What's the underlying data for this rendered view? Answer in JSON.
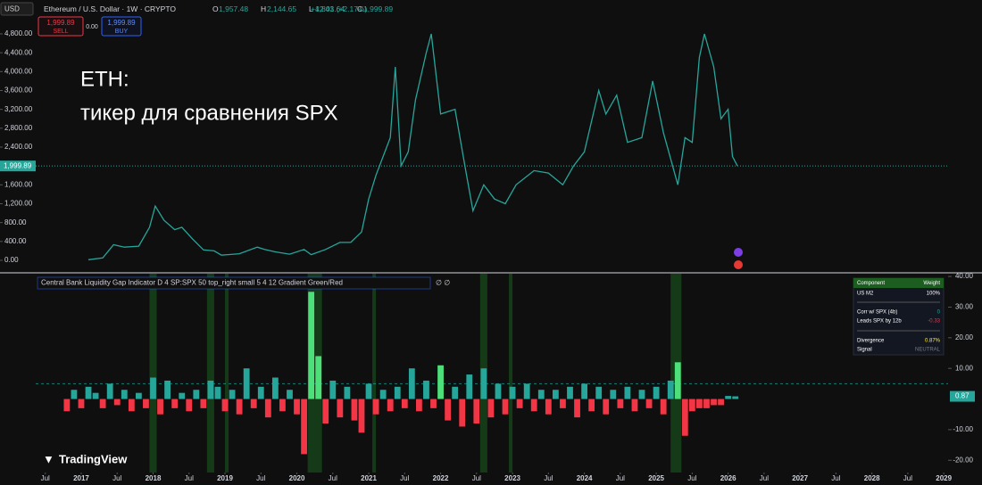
{
  "header": {
    "currency": "USD",
    "symbol": "Ethereum / U.S. Dollar · 1W · CRYPTO",
    "ohlc": [
      {
        "key": "O",
        "value": "1,957.48"
      },
      {
        "key": "H",
        "value": "2,144.65"
      },
      {
        "key": "L",
        "value": "1,803.64"
      },
      {
        "key": "C",
        "value": "1,999.89"
      }
    ],
    "change": "+42.41 (+2.17%)"
  },
  "trade": {
    "sell_price": "1,999.89",
    "sell": "SELL",
    "spread": "0.00",
    "buy_price": "1,999.89",
    "buy": "BUY"
  },
  "chart_data": [
    {
      "type": "line",
      "annotation": [
        "ETH:",
        "тикер для сравнения SPX"
      ],
      "x": [
        2017.1,
        2017.3,
        2017.45,
        2017.6,
        2017.8,
        2017.95,
        2018.03,
        2018.15,
        2018.3,
        2018.4,
        2018.55,
        2018.7,
        2018.85,
        2018.95,
        2019.2,
        2019.45,
        2019.55,
        2019.7,
        2019.9,
        2020.1,
        2020.2,
        2020.4,
        2020.6,
        2020.75,
        2020.9,
        2021.0,
        2021.1,
        2021.3,
        2021.37,
        2021.45,
        2021.55,
        2021.65,
        2021.8,
        2021.87,
        2022.0,
        2022.2,
        2022.35,
        2022.45,
        2022.6,
        2022.75,
        2022.9,
        2023.05,
        2023.3,
        2023.5,
        2023.7,
        2023.85,
        2024.0,
        2024.2,
        2024.3,
        2024.45,
        2024.6,
        2024.8,
        2024.95,
        2025.1,
        2025.3,
        2025.4,
        2025.5,
        2025.6,
        2025.67,
        2025.8,
        2025.9,
        2026.0,
        2026.06,
        2026.13
      ],
      "values": [
        12,
        50,
        330,
        280,
        300,
        700,
        1150,
        850,
        650,
        700,
        450,
        220,
        200,
        110,
        140,
        280,
        230,
        180,
        130,
        230,
        120,
        230,
        380,
        380,
        600,
        1300,
        1800,
        2600,
        4100,
        2000,
        2300,
        3400,
        4400,
        4800,
        3100,
        3200,
        1900,
        1050,
        1600,
        1300,
        1200,
        1600,
        1900,
        1850,
        1600,
        2000,
        2300,
        3600,
        3100,
        3500,
        2500,
        2600,
        3800,
        2700,
        1600,
        2600,
        2500,
        4300,
        4800,
        4100,
        3000,
        3200,
        2200,
        1999.89
      ],
      "color": "#26a69a",
      "xlim": [
        2015.87,
        2029.06
      ],
      "ylim": [
        -246,
        5480
      ],
      "yticks": [
        {
          "value": 0,
          "label": "0.00"
        },
        {
          "value": 400,
          "label": "400.00"
        },
        {
          "value": 800,
          "label": "800.00"
        },
        {
          "value": 1200,
          "label": "1,200.00"
        },
        {
          "value": 1600,
          "label": "1,600.00"
        },
        {
          "value": 2000,
          "label": "2,000.00"
        },
        {
          "value": 2400,
          "label": "2,400.00"
        },
        {
          "value": 2800,
          "label": "2,800.00"
        },
        {
          "value": 3200,
          "label": "3,200.00"
        },
        {
          "value": 3600,
          "label": "3,600.00"
        },
        {
          "value": 4000,
          "label": "4,000.00"
        },
        {
          "value": 4400,
          "label": "4,400.00"
        },
        {
          "value": 4800,
          "label": "4,800.00"
        }
      ],
      "last_price": {
        "value": 1999.89,
        "label": "1,999.89"
      }
    },
    {
      "type": "bar",
      "title": "Central Bank Liquidity Gap Indicator D 4 SP:SPX 50 top_right small 5 4 12 Gradient Green/Red",
      "status": "∅ ∅",
      "x": [
        2016.8,
        2016.9,
        2017.0,
        2017.1,
        2017.2,
        2017.3,
        2017.4,
        2017.5,
        2017.6,
        2017.7,
        2017.8,
        2017.9,
        2018.0,
        2018.1,
        2018.2,
        2018.3,
        2018.4,
        2018.5,
        2018.6,
        2018.7,
        2018.8,
        2018.9,
        2019.0,
        2019.1,
        2019.2,
        2019.3,
        2019.4,
        2019.5,
        2019.6,
        2019.7,
        2019.8,
        2019.9,
        2020.0,
        2020.1,
        2020.2,
        2020.3,
        2020.4,
        2020.5,
        2020.6,
        2020.7,
        2020.8,
        2020.9,
        2021.0,
        2021.1,
        2021.2,
        2021.3,
        2021.4,
        2021.5,
        2021.6,
        2021.7,
        2021.8,
        2021.9,
        2022.0,
        2022.1,
        2022.2,
        2022.3,
        2022.4,
        2022.5,
        2022.6,
        2022.7,
        2022.8,
        2022.9,
        2023.0,
        2023.1,
        2023.2,
        2023.3,
        2023.4,
        2023.5,
        2023.6,
        2023.7,
        2023.8,
        2023.9,
        2024.0,
        2024.1,
        2024.2,
        2024.3,
        2024.4,
        2024.5,
        2024.6,
        2024.7,
        2024.8,
        2024.9,
        2025.0,
        2025.1,
        2025.2,
        2025.3,
        2025.4,
        2025.5,
        2025.6,
        2025.7,
        2025.8,
        2025.9,
        2026.0,
        2026.1
      ],
      "values": [
        -4,
        3,
        -3,
        4,
        2,
        -3,
        5,
        -2,
        3,
        -4,
        2,
        -3,
        7,
        -5,
        6,
        -3,
        2,
        -4,
        3,
        -3,
        6,
        4,
        -4,
        3,
        -5,
        10,
        -3,
        4,
        -6,
        7,
        -4,
        3,
        -5,
        -18,
        35,
        14,
        -8,
        6,
        -6,
        4,
        -7,
        -11,
        5,
        -5,
        3,
        -4,
        4,
        -3,
        10,
        -4,
        6,
        -3,
        11,
        -7,
        4,
        -9,
        8,
        -8,
        10,
        -6,
        5,
        -5,
        4,
        -3,
        5,
        -4,
        3,
        -5,
        3,
        -3,
        4,
        -6,
        5,
        -4,
        4,
        -5,
        3,
        -3,
        4,
        -4,
        3,
        -3,
        4,
        -5,
        6,
        12,
        -12,
        -4,
        -3,
        -3,
        -2,
        -2,
        1,
        0.87
      ],
      "positive_color": "#26a69a",
      "negative_color": "#f23645",
      "zones": [
        [
          2017.95,
          2018.05
        ],
        [
          2018.75,
          2018.85
        ],
        [
          2019.0,
          2019.05
        ],
        [
          2020.15,
          2020.35
        ],
        [
          2021.05,
          2021.1
        ],
        [
          2022.55,
          2022.65
        ],
        [
          2022.95,
          2023.0
        ],
        [
          2025.2,
          2025.35
        ]
      ],
      "zone_color": "#1b5e20",
      "threshold": 5,
      "last_value": {
        "value": 0.87,
        "label": "0.87"
      },
      "xlim": [
        2015.87,
        2029.06
      ],
      "ylim": [
        -24,
        41.2
      ],
      "yticks": [
        {
          "value": -20,
          "label": "-20.00"
        },
        {
          "value": -10,
          "label": "-10.00"
        },
        {
          "value": 10,
          "label": "10.00"
        },
        {
          "value": 20,
          "label": "20.00"
        },
        {
          "value": 30,
          "label": "30.00"
        },
        {
          "value": 40,
          "label": "40.00"
        }
      ],
      "xticks": [
        {
          "value": 2016.5,
          "label": "Jul"
        },
        2017,
        {
          "value": 2017.5,
          "label": "Jul"
        },
        2018,
        {
          "value": 2018.5,
          "label": "Jul"
        },
        2019,
        {
          "value": 2019.5,
          "label": "Jul"
        },
        2020,
        {
          "value": 2020.5,
          "label": "Jul"
        },
        2021,
        {
          "value": 2021.5,
          "label": "Jul"
        },
        2022,
        {
          "value": 2022.5,
          "label": "Jul"
        },
        2023,
        {
          "value": 2023.5,
          "label": "Jul"
        },
        2024,
        {
          "value": 2024.5,
          "label": "Jul"
        },
        2025,
        {
          "value": 2025.5,
          "label": "Jul"
        },
        2026,
        {
          "value": 2026.5,
          "label": "Jul"
        },
        2027,
        {
          "value": 2027.5,
          "label": "Jul"
        },
        2028,
        {
          "value": 2028.5,
          "label": "Jul"
        },
        2029
      ],
      "table": {
        "header": [
          "Component",
          "Weight"
        ],
        "rows": [
          [
            "US M2",
            "100%"
          ],
          [
            "Corr w/ SPX (4b)",
            "0"
          ],
          [
            "Leads SPX by 12b",
            "-0.33"
          ],
          [
            "Divergence",
            "0.87%"
          ],
          [
            "Signal",
            "NEUTRAL"
          ]
        ]
      }
    }
  ],
  "branding": "TradingView"
}
